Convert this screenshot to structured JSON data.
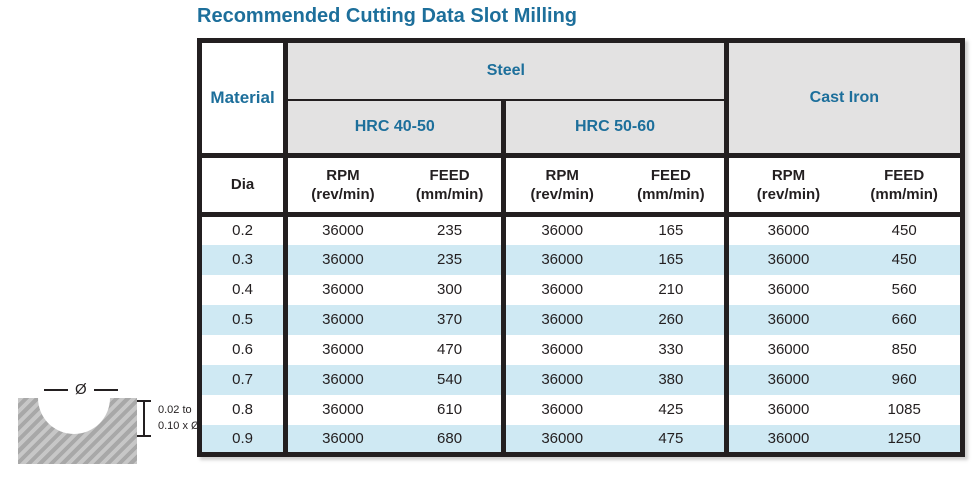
{
  "title": "Recommended Cutting Data Slot Milling",
  "colors": {
    "accent_blue": "#1d6f9b",
    "header_gray": "#e3e2e2",
    "stripe_blue": "#cfe9f3",
    "border_black": "#231f20"
  },
  "table": {
    "material_label": "Material",
    "steel_label": "Steel",
    "cast_iron_label": "Cast Iron",
    "hrc_40_50_label": "HRC 40-50",
    "hrc_50_60_label": "HRC 50-60",
    "dia_label": "Dia",
    "col_rpm": {
      "title": "RPM",
      "unit": "(rev/min)"
    },
    "col_feed": {
      "title": "FEED",
      "unit": "(mm/min)"
    },
    "rows": [
      {
        "dia": "0.2",
        "steel_4050_rpm": "36000",
        "steel_4050_feed": "235",
        "steel_5060_rpm": "36000",
        "steel_5060_feed": "165",
        "cast_rpm": "36000",
        "cast_feed": "450"
      },
      {
        "dia": "0.3",
        "steel_4050_rpm": "36000",
        "steel_4050_feed": "235",
        "steel_5060_rpm": "36000",
        "steel_5060_feed": "165",
        "cast_rpm": "36000",
        "cast_feed": "450"
      },
      {
        "dia": "0.4",
        "steel_4050_rpm": "36000",
        "steel_4050_feed": "300",
        "steel_5060_rpm": "36000",
        "steel_5060_feed": "210",
        "cast_rpm": "36000",
        "cast_feed": "560"
      },
      {
        "dia": "0.5",
        "steel_4050_rpm": "36000",
        "steel_4050_feed": "370",
        "steel_5060_rpm": "36000",
        "steel_5060_feed": "260",
        "cast_rpm": "36000",
        "cast_feed": "660"
      },
      {
        "dia": "0.6",
        "steel_4050_rpm": "36000",
        "steel_4050_feed": "470",
        "steel_5060_rpm": "36000",
        "steel_5060_feed": "330",
        "cast_rpm": "36000",
        "cast_feed": "850"
      },
      {
        "dia": "0.7",
        "steel_4050_rpm": "36000",
        "steel_4050_feed": "540",
        "steel_5060_rpm": "36000",
        "steel_5060_feed": "380",
        "cast_rpm": "36000",
        "cast_feed": "960"
      },
      {
        "dia": "0.8",
        "steel_4050_rpm": "36000",
        "steel_4050_feed": "610",
        "steel_5060_rpm": "36000",
        "steel_5060_feed": "425",
        "cast_rpm": "36000",
        "cast_feed": "1085"
      },
      {
        "dia": "0.9",
        "steel_4050_rpm": "36000",
        "steel_4050_feed": "680",
        "steel_5060_rpm": "36000",
        "steel_5060_feed": "475",
        "cast_rpm": "36000",
        "cast_feed": "1250"
      }
    ]
  },
  "diagram": {
    "diameter_symbol": "Ø",
    "depth_note_line1": "0.02 to",
    "depth_note_line2": "0.10 x Ø"
  }
}
